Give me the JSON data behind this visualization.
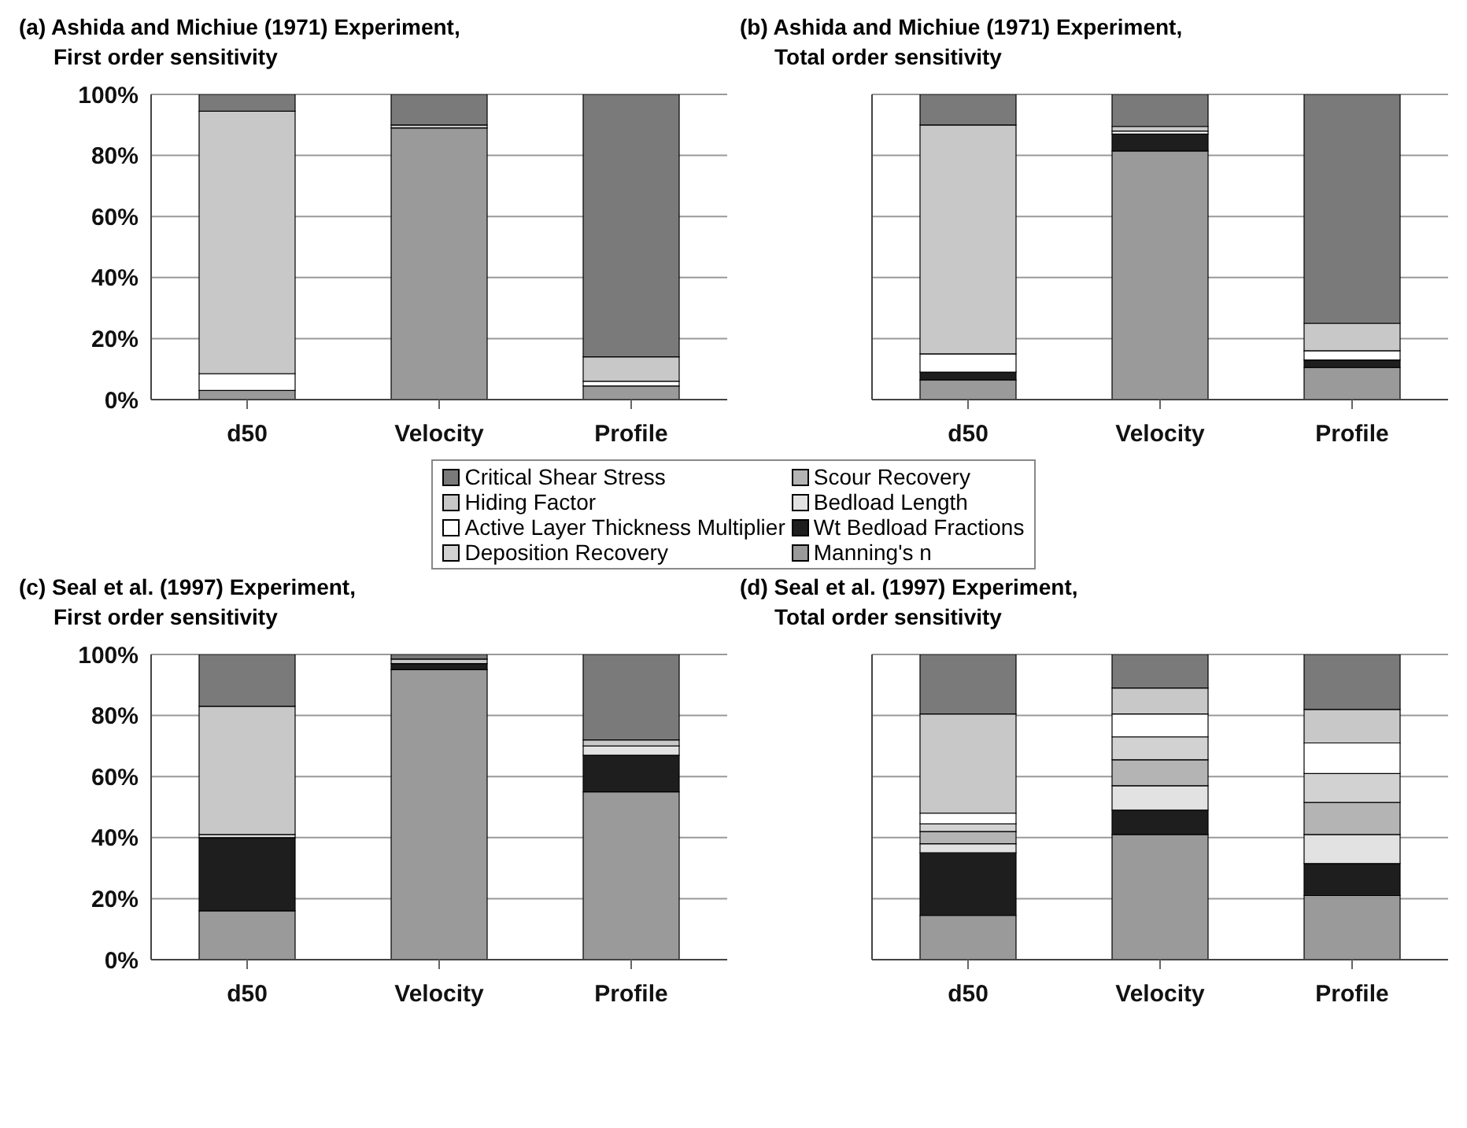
{
  "chart_data": [
    {
      "type": "bar",
      "title": "(a) Ashida and Michiue (1971) Experiment,",
      "subtitle": "First order sensitivity",
      "categories": [
        "d50",
        "Velocity",
        "Profile"
      ],
      "stacked": true,
      "ylim": [
        0,
        100
      ],
      "yticks": [
        {
          "value": 0,
          "label": "0%"
        },
        {
          "value": 20,
          "label": "20%"
        },
        {
          "value": 40,
          "label": "40%"
        },
        {
          "value": 60,
          "label": "60%"
        },
        {
          "value": 80,
          "label": "80%"
        },
        {
          "value": 100,
          "label": "100%"
        }
      ],
      "grid": "y",
      "legend": "bottom",
      "series": [
        {
          "name": "Manning's n",
          "color": "#9a9a9a",
          "values": [
            3,
            89,
            4.5
          ]
        },
        {
          "name": "Wt Bedload Fractions",
          "color": "#1e1e1e",
          "values": [
            null,
            null,
            null
          ]
        },
        {
          "name": "Bedload Length",
          "color": "#e2e2e2",
          "values": [
            null,
            null,
            null
          ]
        },
        {
          "name": "Scour Recovery",
          "color": "#b4b4b4",
          "values": [
            null,
            null,
            null
          ]
        },
        {
          "name": "Deposition Recovery",
          "color": "#d2d2d2",
          "values": [
            null,
            null,
            null
          ]
        },
        {
          "name": "Active Layer Thickness Multiplier",
          "color": "#ffffff",
          "values": [
            5.5,
            null,
            1.5
          ]
        },
        {
          "name": "Hiding Factor",
          "color": "#c8c8c8",
          "values": [
            86,
            1,
            8
          ]
        },
        {
          "name": "Critical Shear Stress",
          "color": "#7a7a7a",
          "values": [
            5.5,
            10,
            86
          ]
        }
      ]
    },
    {
      "type": "bar",
      "title": "(b) Ashida and Michiue (1971) Experiment,",
      "subtitle": "Total order sensitivity",
      "categories": [
        "d50",
        "Velocity",
        "Profile"
      ],
      "stacked": true,
      "ylim": [
        0,
        100
      ],
      "yticks": [
        0,
        20,
        40,
        60,
        80,
        100
      ],
      "grid": "y",
      "tick_labels": "x",
      "series": [
        {
          "color": "#9a9a9a",
          "values": [
            6.5,
            81.5,
            10.5
          ]
        },
        {
          "color": "#1e1e1e",
          "values": [
            2.5,
            5.5,
            2.5
          ]
        },
        {
          "color": "#e2e2e2",
          "values": [
            null,
            null,
            null
          ]
        },
        {
          "color": "#b4b4b4",
          "values": [
            null,
            null,
            null
          ]
        },
        {
          "color": "#d2d2d2",
          "values": [
            null,
            null,
            null
          ]
        },
        {
          "color": "#ffffff",
          "values": [
            6,
            1,
            3
          ]
        },
        {
          "color": "#c8c8c8",
          "values": [
            75,
            1.5,
            9
          ]
        },
        {
          "color": "#7a7a7a",
          "values": [
            10,
            10.5,
            75
          ]
        }
      ]
    },
    {
      "type": "bar",
      "title": "(c) Seal et al. (1997) Experiment,",
      "subtitle": "First order sensitivity",
      "categories": [
        "d50",
        "Velocity",
        "Profile"
      ],
      "stacked": true,
      "ylim": [
        0,
        100
      ],
      "yticks": [
        {
          "value": 0,
          "label": "0%"
        },
        {
          "value": 20,
          "label": "20%"
        },
        {
          "value": 40,
          "label": "40%"
        },
        {
          "value": 60,
          "label": "60%"
        },
        {
          "value": 80,
          "label": "80%"
        },
        {
          "value": 100,
          "label": "100%"
        }
      ],
      "grid": "y",
      "series": [
        {
          "color": "#9a9a9a",
          "values": [
            16,
            95,
            55
          ]
        },
        {
          "color": "#1e1e1e",
          "values": [
            24,
            2,
            12
          ]
        },
        {
          "color": "#e2e2e2",
          "values": [
            1,
            null,
            3
          ]
        },
        {
          "color": "#b4b4b4",
          "values": [
            null,
            null,
            null
          ]
        },
        {
          "color": "#d2d2d2",
          "values": [
            null,
            null,
            null
          ]
        },
        {
          "color": "#ffffff",
          "values": [
            null,
            null,
            null
          ]
        },
        {
          "color": "#c8c8c8",
          "values": [
            42,
            1.5,
            2
          ]
        },
        {
          "color": "#7a7a7a",
          "values": [
            17,
            1.5,
            28
          ]
        }
      ]
    },
    {
      "type": "bar",
      "title": "(d) Seal et al. (1997) Experiment,",
      "subtitle": "Total order sensitivity",
      "categories": [
        "d50",
        "Velocity",
        "Profile"
      ],
      "stacked": true,
      "ylim": [
        0,
        100
      ],
      "yticks": [
        0,
        20,
        40,
        60,
        80,
        100
      ],
      "grid": "y",
      "tick_labels": "x",
      "series": [
        {
          "color": "#9a9a9a",
          "values": [
            14.5,
            41,
            21
          ]
        },
        {
          "color": "#1e1e1e",
          "values": [
            20.5,
            8,
            10.5
          ]
        },
        {
          "color": "#e2e2e2",
          "values": [
            3,
            8,
            9.5
          ]
        },
        {
          "color": "#b4b4b4",
          "values": [
            4,
            8.5,
            10.5
          ]
        },
        {
          "color": "#d2d2d2",
          "values": [
            2.5,
            7.5,
            9.5
          ]
        },
        {
          "color": "#ffffff",
          "values": [
            3.5,
            7.5,
            10
          ]
        },
        {
          "color": "#c8c8c8",
          "values": [
            32.5,
            8.5,
            11
          ]
        },
        {
          "color": "#7a7a7a",
          "values": [
            19.5,
            11,
            18
          ]
        }
      ]
    }
  ]
}
